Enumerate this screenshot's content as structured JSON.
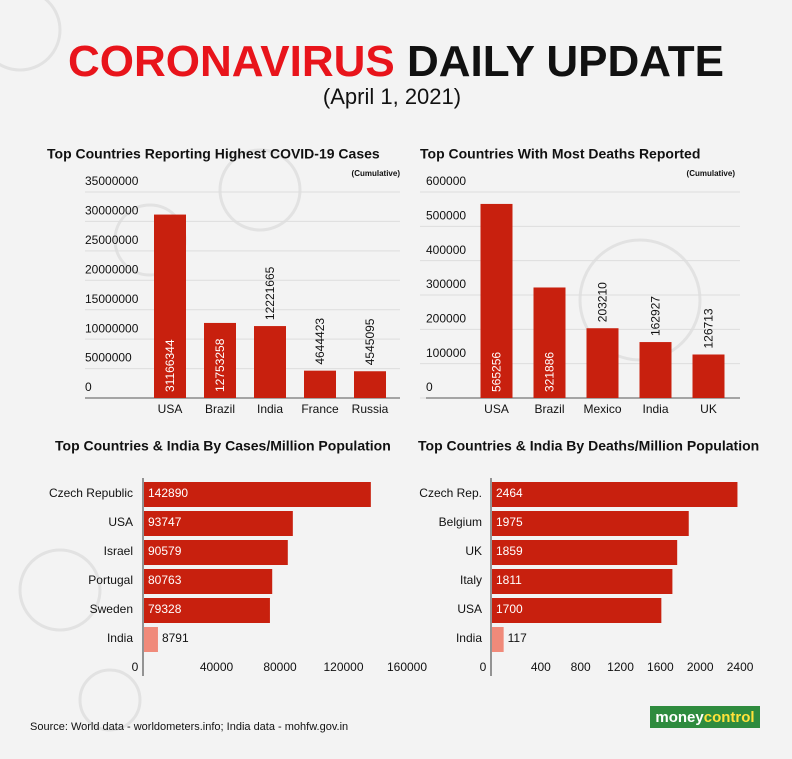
{
  "header": {
    "title_red": "CORONAVIRUS",
    "title_black": "DAILY UPDATE",
    "subtitle": "(April 1, 2021)"
  },
  "source": "Source: World data - worldometers.info; India data - mohfw.gov.in",
  "logo": {
    "part1": "money",
    "part2": "control"
  },
  "chart_data": [
    {
      "type": "bar",
      "title": "Top Countries Reporting Highest COVID-19 Cases",
      "note": "(Cumulative)",
      "categories": [
        "USA",
        "Brazil",
        "India",
        "France",
        "Russia"
      ],
      "values": [
        31166344,
        12753258,
        12221665,
        4644423,
        4545095
      ],
      "color": "#c8200e",
      "ylim": [
        0,
        35000000
      ],
      "yticks": [
        0,
        5000000,
        10000000,
        15000000,
        20000000,
        25000000,
        30000000,
        35000000
      ],
      "grid": true
    },
    {
      "type": "bar",
      "title": "Top Countries With Most Deaths Reported",
      "note": "(Cumulative)",
      "categories": [
        "USA",
        "Brazil",
        "Mexico",
        "India",
        "UK"
      ],
      "values": [
        565256,
        321886,
        203210,
        162927,
        126713
      ],
      "color": "#c8200e",
      "ylim": [
        0,
        600000
      ],
      "yticks": [
        0,
        100000,
        200000,
        300000,
        400000,
        500000,
        600000
      ],
      "grid": true
    },
    {
      "type": "barh",
      "title": "Top Countries & India By Cases/Million Population",
      "categories": [
        "Czech Republic",
        "USA",
        "Israel",
        "Portugal",
        "Sweden",
        "India"
      ],
      "values": [
        142890,
        93747,
        90579,
        80763,
        79328,
        8791
      ],
      "colors": [
        "#c8200e",
        "#c8200e",
        "#c8200e",
        "#c8200e",
        "#c8200e",
        "#f08a7a"
      ],
      "xlim": [
        0,
        160000
      ],
      "xticks": [
        0,
        40000,
        80000,
        120000,
        160000
      ]
    },
    {
      "type": "barh",
      "title": "Top Countries & India By Deaths/Million Population",
      "categories": [
        "Czech Rep.",
        "Belgium",
        "UK",
        "Italy",
        "USA",
        "India"
      ],
      "values": [
        2464,
        1975,
        1859,
        1811,
        1700,
        117
      ],
      "colors": [
        "#c8200e",
        "#c8200e",
        "#c8200e",
        "#c8200e",
        "#c8200e",
        "#f08a7a"
      ],
      "xlim": [
        0,
        2600
      ],
      "xticks": [
        0,
        400,
        800,
        1200,
        1600,
        2000,
        2400
      ]
    }
  ]
}
